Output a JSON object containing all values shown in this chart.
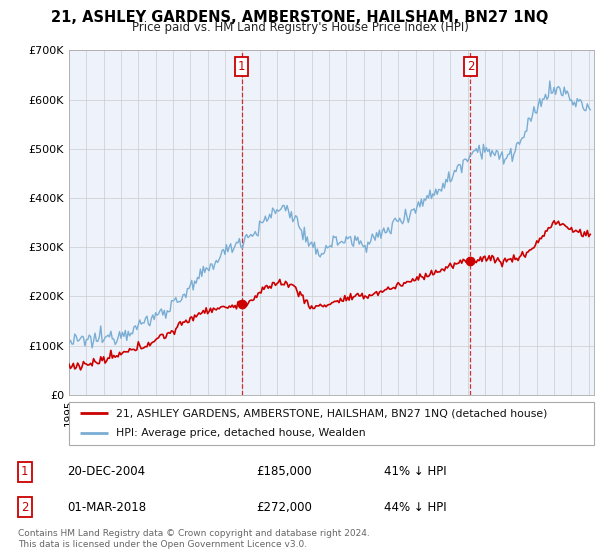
{
  "title": "21, ASHLEY GARDENS, AMBERSTONE, HAILSHAM, BN27 1NQ",
  "subtitle": "Price paid vs. HM Land Registry's House Price Index (HPI)",
  "xlim_start": 1995.0,
  "xlim_end": 2025.3,
  "ylim": [
    0,
    700000
  ],
  "yticks": [
    0,
    100000,
    200000,
    300000,
    400000,
    500000,
    600000,
    700000
  ],
  "ytick_labels": [
    "£0",
    "£100K",
    "£200K",
    "£300K",
    "£400K",
    "£500K",
    "£600K",
    "£700K"
  ],
  "sale1_x": 2004.96,
  "sale1_y": 185000,
  "sale2_x": 2018.17,
  "sale2_y": 272000,
  "legend_red_label": "21, ASHLEY GARDENS, AMBERSTONE, HAILSHAM, BN27 1NQ (detached house)",
  "legend_blue_label": "HPI: Average price, detached house, Wealden",
  "footnote": "Contains HM Land Registry data © Crown copyright and database right 2024.\nThis data is licensed under the Open Government Licence v3.0.",
  "red_color": "#cc0000",
  "blue_color": "#7aadd4",
  "blue_fill_color": "#ddeeff",
  "grid_color": "#cccccc",
  "background_color": "#ffffff",
  "plot_bg_color": "#f0f4ff",
  "hpi_keypoints_x": [
    1995.0,
    1996.0,
    1997.0,
    1998.0,
    1999.0,
    2000.0,
    2001.0,
    2002.0,
    2003.0,
    2004.0,
    2004.96,
    2005.5,
    2006.0,
    2007.0,
    2007.5,
    2008.0,
    2008.5,
    2009.0,
    2009.5,
    2010.0,
    2011.0,
    2012.0,
    2013.0,
    2014.0,
    2015.0,
    2016.0,
    2017.0,
    2017.5,
    2018.17,
    2018.5,
    2019.0,
    2019.5,
    2020.0,
    2020.5,
    2021.0,
    2021.5,
    2022.0,
    2022.5,
    2023.0,
    2023.5,
    2024.0,
    2024.5,
    2025.0
  ],
  "hpi_keypoints_y": [
    107000,
    110000,
    115000,
    125000,
    140000,
    160000,
    185000,
    215000,
    255000,
    290000,
    315000,
    325000,
    340000,
    375000,
    380000,
    360000,
    330000,
    295000,
    290000,
    305000,
    315000,
    310000,
    325000,
    355000,
    380000,
    410000,
    440000,
    465000,
    490000,
    500000,
    500000,
    490000,
    480000,
    490000,
    510000,
    545000,
    580000,
    610000,
    620000,
    615000,
    600000,
    590000,
    580000
  ],
  "red_keypoints_x": [
    1995.0,
    1996.0,
    1997.0,
    1998.0,
    1999.0,
    2000.0,
    2001.0,
    2002.0,
    2003.0,
    2004.0,
    2004.96,
    2005.5,
    2006.0,
    2007.0,
    2008.0,
    2009.0,
    2010.0,
    2011.0,
    2012.0,
    2013.0,
    2014.0,
    2015.0,
    2016.0,
    2017.0,
    2017.5,
    2018.17,
    2018.5,
    2019.0,
    2020.0,
    2021.0,
    2022.0,
    2022.5,
    2023.0,
    2023.5,
    2024.0,
    2024.5,
    2025.0
  ],
  "red_keypoints_y": [
    58000,
    62000,
    70000,
    82000,
    95000,
    112000,
    130000,
    155000,
    172000,
    178000,
    185000,
    192000,
    205000,
    228000,
    220000,
    178000,
    185000,
    195000,
    200000,
    210000,
    222000,
    235000,
    248000,
    260000,
    268000,
    272000,
    275000,
    278000,
    272000,
    280000,
    308000,
    330000,
    350000,
    345000,
    335000,
    330000,
    325000
  ]
}
